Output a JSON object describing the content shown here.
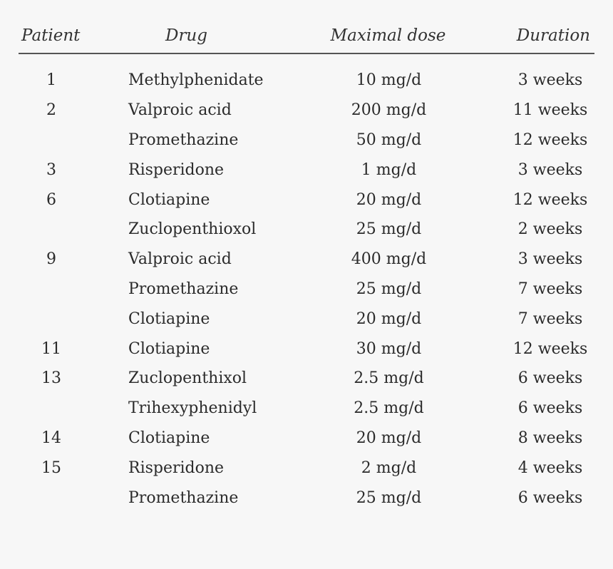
{
  "table": {
    "headers": {
      "patient": "Patient",
      "drug": "Drug",
      "dose": "Maximal dose",
      "duration": "Duration"
    },
    "rows": [
      {
        "patient": "1",
        "drug": "Methylphenidate",
        "dose": "10 mg/d",
        "duration": "3 weeks"
      },
      {
        "patient": "2",
        "drug": "Valproic acid",
        "dose": "200 mg/d",
        "duration": "11 weeks"
      },
      {
        "patient": "",
        "drug": "Promethazine",
        "dose": "50 mg/d",
        "duration": "12 weeks"
      },
      {
        "patient": "3",
        "drug": "Risperidone",
        "dose": "1 mg/d",
        "duration": "3 weeks"
      },
      {
        "patient": "6",
        "drug": "Clotiapine",
        "dose": "20 mg/d",
        "duration": "12 weeks"
      },
      {
        "patient": "",
        "drug": "Zuclopenthioxol",
        "dose": "25 mg/d",
        "duration": "2 weeks"
      },
      {
        "patient": "9",
        "drug": "Valproic acid",
        "dose": "400 mg/d",
        "duration": "3 weeks"
      },
      {
        "patient": "",
        "drug": "Promethazine",
        "dose": "25 mg/d",
        "duration": "7 weeks"
      },
      {
        "patient": "",
        "drug": "Clotiapine",
        "dose": "20 mg/d",
        "duration": "7 weeks"
      },
      {
        "patient": "11",
        "drug": "Clotiapine",
        "dose": "30 mg/d",
        "duration": "12 weeks"
      },
      {
        "patient": "13",
        "drug": "Zuclopenthixol",
        "dose": "2.5 mg/d",
        "duration": "6 weeks"
      },
      {
        "patient": "",
        "drug": "Trihexyphenidyl",
        "dose": "2.5 mg/d",
        "duration": "6 weeks"
      },
      {
        "patient": "14",
        "drug": "Clotiapine",
        "dose": "20 mg/d",
        "duration": "8 weeks"
      },
      {
        "patient": "15",
        "drug": "Risperidone",
        "dose": "2 mg/d",
        "duration": "4 weeks"
      },
      {
        "patient": "",
        "drug": "Promethazine",
        "dose": "25 mg/d",
        "duration": "6 weeks"
      }
    ]
  }
}
